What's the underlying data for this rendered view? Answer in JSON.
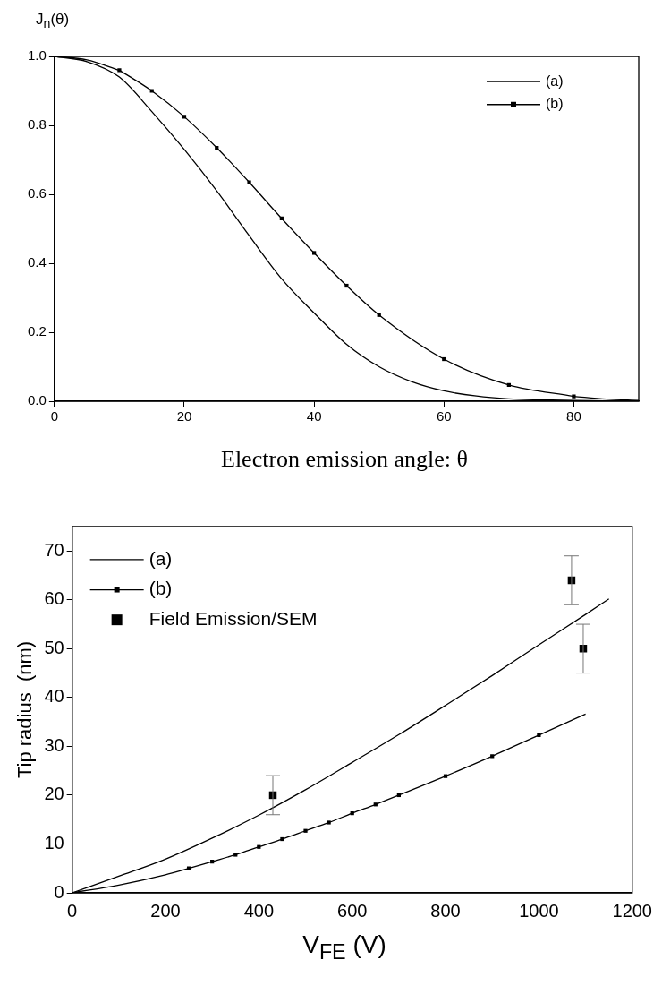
{
  "chart_data": [
    {
      "type": "line",
      "ylabel": "J$_{n}$(θ)",
      "xlabel": "Electron emission angle: θ",
      "xlim": [
        0,
        90
      ],
      "xticks": [
        0,
        20,
        40,
        60,
        80
      ],
      "ylim": [
        0,
        1
      ],
      "yticks": [
        {
          "value": 0,
          "label": "0.0"
        },
        {
          "value": 0.2,
          "label": "0.2"
        },
        {
          "value": 0.4,
          "label": "0.4"
        },
        {
          "value": 0.6,
          "label": "0.6"
        },
        {
          "value": 0.8,
          "label": "0.8"
        },
        {
          "value": 1,
          "label": "1.0"
        }
      ],
      "legend": "top right",
      "series": [
        {
          "name": "(a)",
          "color": "#000000",
          "marker": "none",
          "x": [
            0,
            5,
            10,
            15,
            20,
            25,
            30,
            35,
            40,
            45,
            50,
            55,
            60,
            65,
            70,
            75,
            80,
            85,
            90
          ],
          "values": [
            1.0,
            0.985,
            0.94,
            0.84,
            0.73,
            0.61,
            0.48,
            0.355,
            0.256,
            0.165,
            0.1,
            0.057,
            0.03,
            0.015,
            0.007,
            0.004,
            0.002,
            0.001,
            0
          ]
        },
        {
          "name": "(b)",
          "color": "#000000",
          "marker": "square",
          "x": [
            10,
            15,
            20,
            25,
            30,
            35,
            40,
            45,
            50,
            60,
            70,
            80
          ],
          "values": [
            0.96,
            0.9,
            0.825,
            0.735,
            0.635,
            0.53,
            0.43,
            0.335,
            0.25,
            0.122,
            0.047,
            0.014
          ]
        },
        {
          "color": "#000000",
          "marker": "none",
          "x": [
            0,
            5,
            10,
            45,
            80,
            85,
            90
          ],
          "values": [
            1.0,
            0.99,
            0.96,
            null,
            0.014,
            0.006,
            0.002
          ]
        }
      ]
    },
    {
      "type": "line",
      "ylabel": "Tip radius  (nm)",
      "xlabel": "V$_{FE}$ (V)",
      "xlim": [
        0,
        1200
      ],
      "xticks": [
        0,
        200,
        400,
        600,
        800,
        1000,
        1200
      ],
      "ylim": [
        0,
        75
      ],
      "yticks": [
        0,
        10,
        20,
        30,
        40,
        50,
        60,
        70
      ],
      "legend": "top left",
      "series": [
        {
          "name": "(a)",
          "color": "#000000",
          "marker": "none",
          "x": [
            0,
            100,
            200,
            300,
            400,
            500,
            600,
            700,
            800,
            900,
            1000,
            1100,
            1150
          ],
          "values": [
            0,
            3.4,
            6.9,
            11.2,
            15.9,
            21.1,
            26.7,
            32.4,
            38.4,
            44.5,
            50.8,
            57.0,
            60.2
          ]
        },
        {
          "name": "(b)",
          "color": "#000000",
          "marker": "square",
          "x": [
            250,
            300,
            350,
            400,
            450,
            500,
            550,
            600,
            650,
            700,
            800,
            900,
            1000
          ],
          "values": [
            5.0,
            6.4,
            7.8,
            9.4,
            11.0,
            12.7,
            14.4,
            16.3,
            18.1,
            20.0,
            23.9,
            28.0,
            32.3
          ]
        },
        {
          "name": "Field Emission/SEM",
          "type": "scatter",
          "color": "#000000",
          "marker": "square",
          "x": [
            430,
            1070,
            1095
          ],
          "values": [
            20,
            64,
            50
          ],
          "errors": [
            4,
            5,
            5
          ]
        },
        {
          "color": "#000000",
          "marker": "none",
          "x": [
            0,
            100,
            200,
            250,
            600,
            1000,
            1100
          ],
          "values": [
            0,
            1.6,
            3.7,
            5.0,
            null,
            32.3,
            36.6
          ]
        }
      ]
    }
  ]
}
